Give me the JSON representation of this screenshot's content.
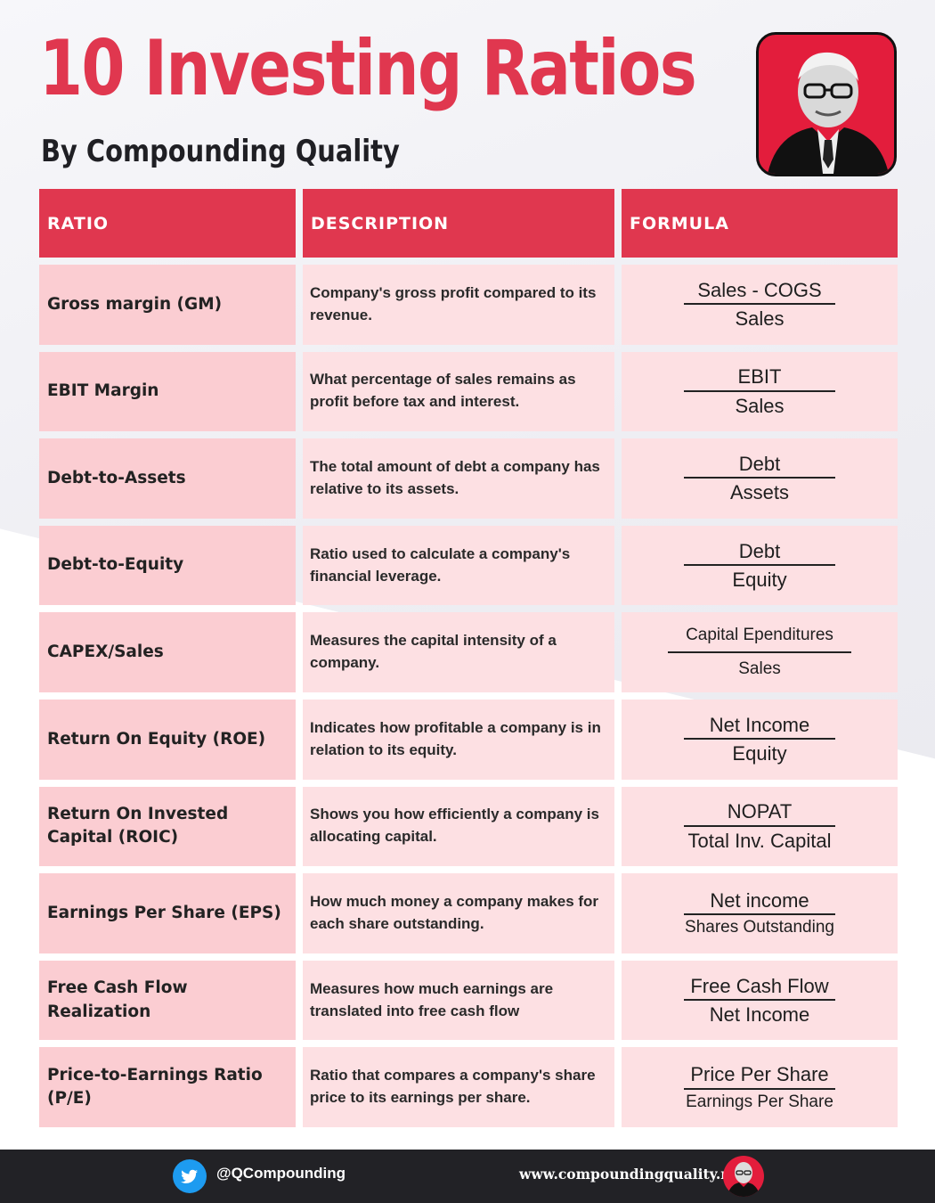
{
  "header": {
    "title": "10 Investing Ratios",
    "subtitle": "By Compounding Quality"
  },
  "table": {
    "columns": [
      "RATIO",
      "DESCRIPTION",
      "FORMULA"
    ],
    "rows": [
      {
        "ratio": "Gross margin (GM)",
        "description": "Company's gross profit compared to its revenue.",
        "numerator": "Sales - COGS",
        "denominator": "Sales"
      },
      {
        "ratio": "EBIT Margin",
        "description": "What percentage of sales remains as profit before tax and interest.",
        "numerator": "EBIT",
        "denominator": "Sales"
      },
      {
        "ratio": "Debt-to-Assets",
        "description": "The total amount of debt a company has relative to its assets.",
        "numerator": "Debt",
        "denominator": "Assets"
      },
      {
        "ratio": "Debt-to-Equity",
        "description": "Ratio used to calculate a company's financial leverage.",
        "numerator": "Debt",
        "denominator": "Equity"
      },
      {
        "ratio": "CAPEX/Sales",
        "description": "Measures the capital intensity of a company.",
        "numerator": "Capital Ependitures",
        "denominator": "Sales"
      },
      {
        "ratio": "Return On Equity (ROE)",
        "description": "Indicates how profitable a company is in relation to its equity.",
        "numerator": "Net Income",
        "denominator": "Equity"
      },
      {
        "ratio": "Return On Invested Capital (ROIC)",
        "description": "Shows you how efficiently a company is allocating capital.",
        "numerator": "NOPAT",
        "denominator": "Total Inv. Capital"
      },
      {
        "ratio": "Earnings Per Share (EPS)",
        "description": "How much money a company makes for each share outstanding.",
        "numerator": "Net income",
        "denominator": "Shares Outstanding"
      },
      {
        "ratio": "Free Cash Flow Realization",
        "description": "Measures how much earnings are translated into free cash flow",
        "numerator": "Free Cash Flow",
        "denominator": "Net Income"
      },
      {
        "ratio": "Price-to-Earnings Ratio (P/E)",
        "description": "Ratio that compares a company's share price to its earnings per share.",
        "numerator": "Price Per Share",
        "denominator": "Earnings Per Share"
      }
    ]
  },
  "footer": {
    "twitter_handle": "@QCompounding",
    "website": "www.compoundingquality.net"
  },
  "colors": {
    "accent": "#e0374f",
    "ratio_cell": "#fbcdd2",
    "cell": "#fde0e3",
    "footer": "#222226",
    "twitter": "#1d9bf0"
  },
  "icons": [
    "portrait-logo",
    "twitter-icon",
    "portrait-avatar-icon"
  ]
}
